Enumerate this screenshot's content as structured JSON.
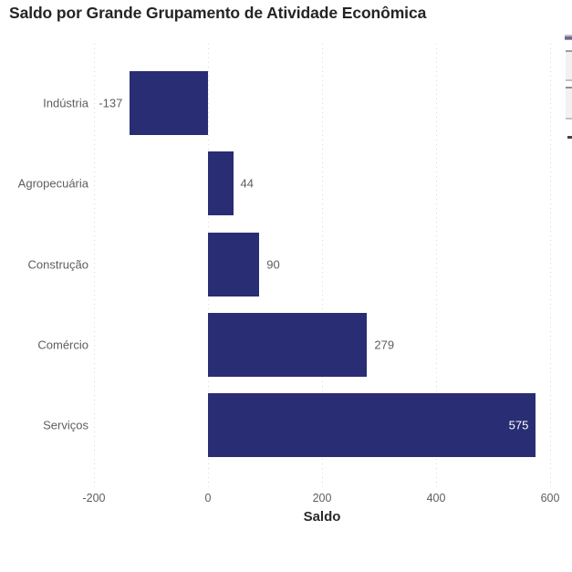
{
  "title": "Saldo por Grande Grupamento de Atividade Econômica",
  "chart_data": {
    "type": "bar",
    "orientation": "horizontal",
    "title": "Saldo por Grande Grupamento de Atividade Econômica",
    "xlabel": "Saldo",
    "ylabel": "",
    "categories": [
      "Indústria",
      "Agropecuária",
      "Construção",
      "Comércio",
      "Serviços"
    ],
    "values": [
      -137,
      44,
      90,
      279,
      575
    ],
    "value_labels": [
      "-137",
      "44",
      "90",
      "279",
      "575"
    ],
    "xlim": [
      -200,
      600
    ],
    "xticks": [
      -200,
      0,
      200,
      400,
      600
    ],
    "xtick_labels": [
      "-200",
      "0",
      "200",
      "400",
      "600"
    ],
    "grid": "vertical-dotted",
    "legend": "none",
    "colors": {
      "bar": "#292D73",
      "axis_text": "#605E5C",
      "title_text": "#252423",
      "x_axis_title_text": "#2B2A29",
      "value_label": "#605E5C",
      "value_label_inside": "#FFFFFF",
      "gridline": "#D8D8D8",
      "background": "#FFFFFF"
    }
  }
}
